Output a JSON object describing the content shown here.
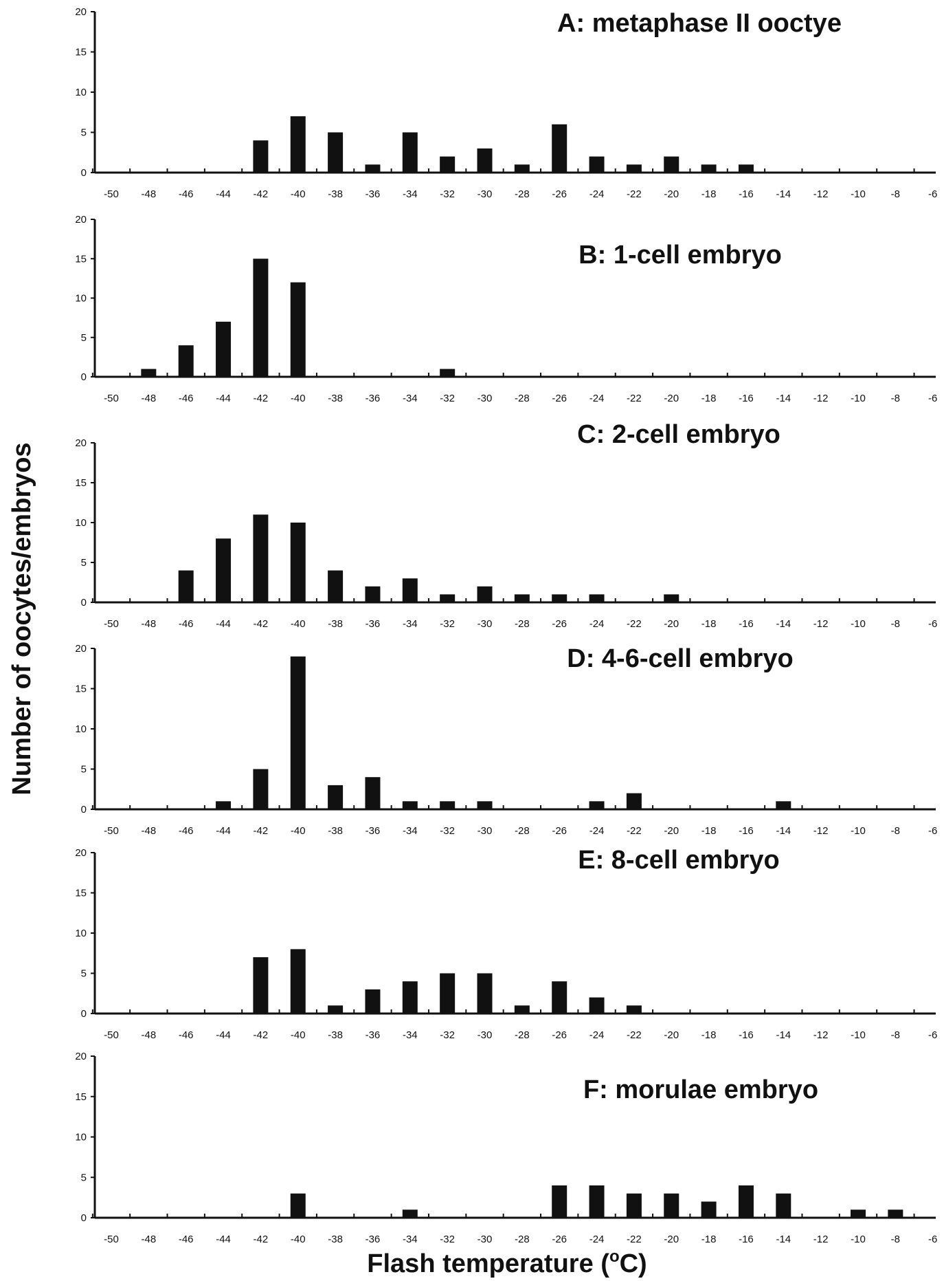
{
  "chart_data": {
    "type": "bar",
    "xlabel": "Flash temperature (",
    "xlabel_sup": "o",
    "xlabel_unit": "C)",
    "ylabel": "Number of oocytes/embryos",
    "x_ticks": [
      -50,
      -48,
      -46,
      -44,
      -42,
      -40,
      -38,
      -36,
      -34,
      -32,
      -30,
      -28,
      -26,
      -24,
      -22,
      -20,
      -18,
      -16,
      -14,
      -12,
      -10,
      -8,
      -6
    ],
    "y_ticks": [
      0,
      5,
      10,
      15,
      20
    ],
    "ylim": [
      0,
      20
    ],
    "panels": [
      {
        "title": "A: metaphase II ooctye",
        "values": [
          0,
          0,
          0,
          0,
          4,
          7,
          5,
          1,
          5,
          2,
          3,
          1,
          6,
          2,
          1,
          2,
          1,
          1,
          0,
          0,
          0,
          0,
          0
        ]
      },
      {
        "title": "B: 1-cell embryo",
        "values": [
          0,
          1,
          4,
          7,
          15,
          12,
          0,
          0,
          0,
          1,
          0,
          0,
          0,
          0,
          0,
          0,
          0,
          0,
          0,
          0,
          0,
          0,
          0
        ]
      },
      {
        "title": "C: 2-cell embryo",
        "values": [
          0,
          0,
          4,
          8,
          11,
          10,
          4,
          2,
          3,
          1,
          2,
          1,
          1,
          1,
          0,
          1,
          0,
          0,
          0,
          0,
          0,
          0,
          0
        ]
      },
      {
        "title": "D: 4-6-cell embryo",
        "values": [
          0,
          0,
          0,
          1,
          5,
          19,
          3,
          4,
          1,
          1,
          1,
          0,
          0,
          1,
          2,
          0,
          0,
          0,
          1,
          0,
          0,
          0,
          0
        ]
      },
      {
        "title": "E: 8-cell embryo",
        "values": [
          0,
          0,
          0,
          0,
          7,
          8,
          1,
          3,
          4,
          5,
          5,
          1,
          4,
          2,
          1,
          0,
          0,
          0,
          0,
          0,
          0,
          0,
          0
        ]
      },
      {
        "title": "F: morulae embryo",
        "values": [
          0,
          0,
          0,
          0,
          0,
          3,
          0,
          0,
          1,
          0,
          0,
          0,
          4,
          4,
          3,
          3,
          2,
          4,
          3,
          0,
          1,
          1,
          0
        ]
      }
    ]
  }
}
